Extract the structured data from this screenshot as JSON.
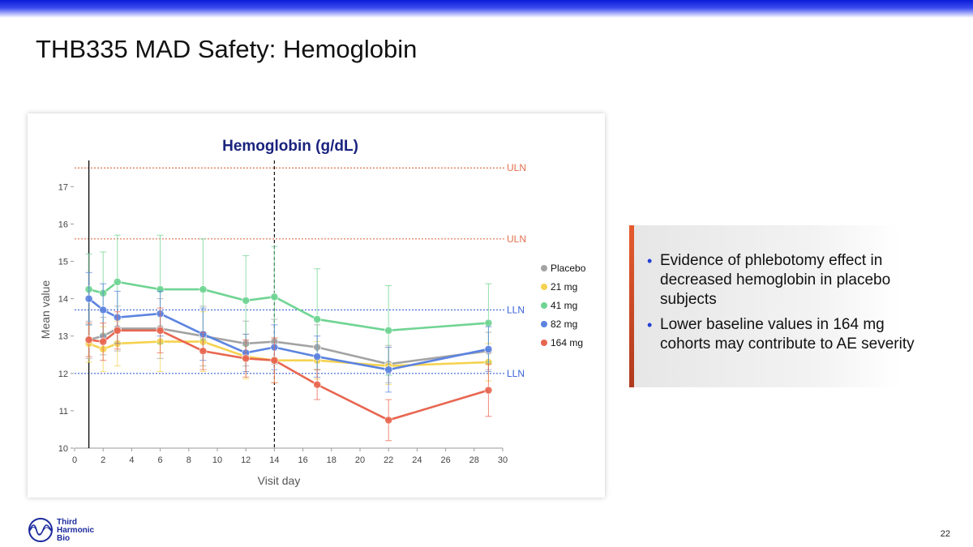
{
  "slide": {
    "title": "THB335 MAD Safety: Hemoglobin",
    "page_number": "22",
    "logo_lines": [
      "Third",
      "Harmonic",
      "Bio"
    ]
  },
  "callout": {
    "bullets": [
      "Evidence of phlebotomy effect in decreased hemoglobin in placebo subjects",
      "Lower baseline values in 164 mg cohorts may contribute to AE severity"
    ]
  },
  "chart_data": {
    "type": "line",
    "title": "Hemoglobin (g/dL)",
    "xlabel": "Visit day",
    "ylabel": "Mean value",
    "xlim": [
      0,
      30
    ],
    "ylim": [
      10,
      17.7
    ],
    "x_ticks": [
      0,
      2,
      4,
      6,
      8,
      10,
      12,
      14,
      16,
      18,
      20,
      22,
      24,
      26,
      28,
      30
    ],
    "y_ticks": [
      10,
      11,
      12,
      13,
      14,
      15,
      16,
      17
    ],
    "grid": false,
    "legend_position": "right",
    "reference_lines": [
      {
        "label": "ULN",
        "y": 17.5,
        "color": "#e2704f"
      },
      {
        "label": "ULN",
        "y": 15.6,
        "color": "#e2704f"
      },
      {
        "label": "LLN",
        "y": 13.7,
        "color": "#3a62d9"
      },
      {
        "label": "LLN",
        "y": 12.0,
        "color": "#3a62d9"
      }
    ],
    "vertical_lines": [
      {
        "x": 1,
        "style": "solid",
        "color": "#111111"
      },
      {
        "x": 14,
        "style": "dashed",
        "color": "#111111"
      }
    ],
    "series": [
      {
        "name": "Placebo",
        "color": "#a3a3a3",
        "x": [
          1,
          2,
          3,
          6,
          9,
          12,
          14,
          17,
          22,
          29
        ],
        "y": [
          12.9,
          13.0,
          13.2,
          13.2,
          13.0,
          12.8,
          12.85,
          12.7,
          12.25,
          12.6
        ],
        "err": [
          0.5,
          0.5,
          0.6,
          0.8,
          0.8,
          0.6,
          0.6,
          0.6,
          0.5,
          0.5
        ]
      },
      {
        "name": "21 mg",
        "color": "#f5d24f",
        "x": [
          1,
          2,
          3,
          6,
          9,
          12,
          14,
          17,
          22,
          29
        ],
        "y": [
          12.8,
          12.65,
          12.8,
          12.85,
          12.85,
          12.45,
          12.35,
          12.35,
          12.2,
          12.3
        ],
        "err": [
          0.5,
          0.6,
          0.6,
          0.8,
          0.8,
          0.6,
          0.6,
          0.5,
          0.5,
          0.5
        ]
      },
      {
        "name": "41 mg",
        "color": "#6fd493",
        "x": [
          1,
          2,
          3,
          6,
          9,
          12,
          14,
          17,
          22,
          29
        ],
        "y": [
          14.25,
          14.15,
          14.45,
          14.25,
          14.25,
          13.95,
          14.05,
          13.45,
          13.15,
          13.35
        ],
        "err": [
          0.95,
          1.1,
          1.25,
          1.45,
          1.35,
          1.2,
          1.35,
          1.35,
          1.2,
          1.05
        ]
      },
      {
        "name": "82 mg",
        "color": "#5b83e0",
        "x": [
          1,
          2,
          3,
          6,
          9,
          12,
          14,
          17,
          22,
          29
        ],
        "y": [
          14.0,
          13.7,
          13.5,
          13.6,
          13.05,
          12.55,
          12.7,
          12.45,
          12.1,
          12.65
        ],
        "err": [
          0.7,
          0.7,
          0.7,
          0.6,
          0.7,
          0.5,
          0.6,
          0.55,
          0.6,
          0.6
        ]
      },
      {
        "name": "164 mg",
        "color": "#e86650",
        "x": [
          1,
          2,
          3,
          6,
          9,
          12,
          14,
          17,
          22,
          29
        ],
        "y": [
          12.9,
          12.85,
          13.15,
          13.15,
          12.6,
          12.4,
          12.35,
          11.7,
          10.75,
          11.55
        ],
        "err": [
          0.45,
          0.5,
          0.5,
          0.6,
          0.5,
          0.5,
          0.6,
          0.4,
          0.55,
          0.7
        ]
      }
    ]
  }
}
